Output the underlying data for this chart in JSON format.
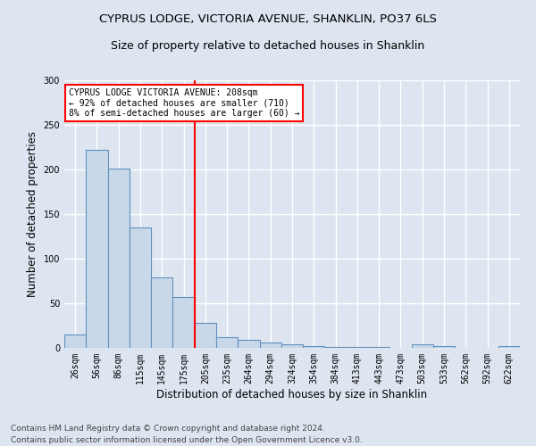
{
  "title_line1": "CYPRUS LODGE, VICTORIA AVENUE, SHANKLIN, PO37 6LS",
  "title_line2": "Size of property relative to detached houses in Shanklin",
  "xlabel": "Distribution of detached houses by size in Shanklin",
  "ylabel": "Number of detached properties",
  "categories": [
    "26sqm",
    "56sqm",
    "86sqm",
    "115sqm",
    "145sqm",
    "175sqm",
    "205sqm",
    "235sqm",
    "264sqm",
    "294sqm",
    "324sqm",
    "354sqm",
    "384sqm",
    "413sqm",
    "443sqm",
    "473sqm",
    "503sqm",
    "533sqm",
    "562sqm",
    "592sqm",
    "622sqm"
  ],
  "values": [
    15,
    222,
    201,
    135,
    79,
    57,
    28,
    12,
    9,
    6,
    4,
    2,
    1,
    1,
    1,
    0,
    4,
    2,
    0,
    0,
    2
  ],
  "bar_color": "#c8d8e8",
  "bar_edge_color": "#6090c0",
  "vline_x_index": 6,
  "vline_color": "red",
  "annotation_text": "CYPRUS LODGE VICTORIA AVENUE: 208sqm\n← 92% of detached houses are smaller (710)\n8% of semi-detached houses are larger (60) →",
  "annotation_box_color": "white",
  "annotation_box_edge_color": "red",
  "ylim": [
    0,
    300
  ],
  "yticks": [
    0,
    50,
    100,
    150,
    200,
    250,
    300
  ],
  "footer_line1": "Contains HM Land Registry data © Crown copyright and database right 2024.",
  "footer_line2": "Contains public sector information licensed under the Open Government Licence v3.0.",
  "background_color": "#dde5f0",
  "plot_bg_color": "#dde5f0",
  "grid_color": "white",
  "title_fontsize": 9.5,
  "subtitle_fontsize": 9,
  "tick_fontsize": 7,
  "label_fontsize": 8.5,
  "footer_fontsize": 6.5
}
